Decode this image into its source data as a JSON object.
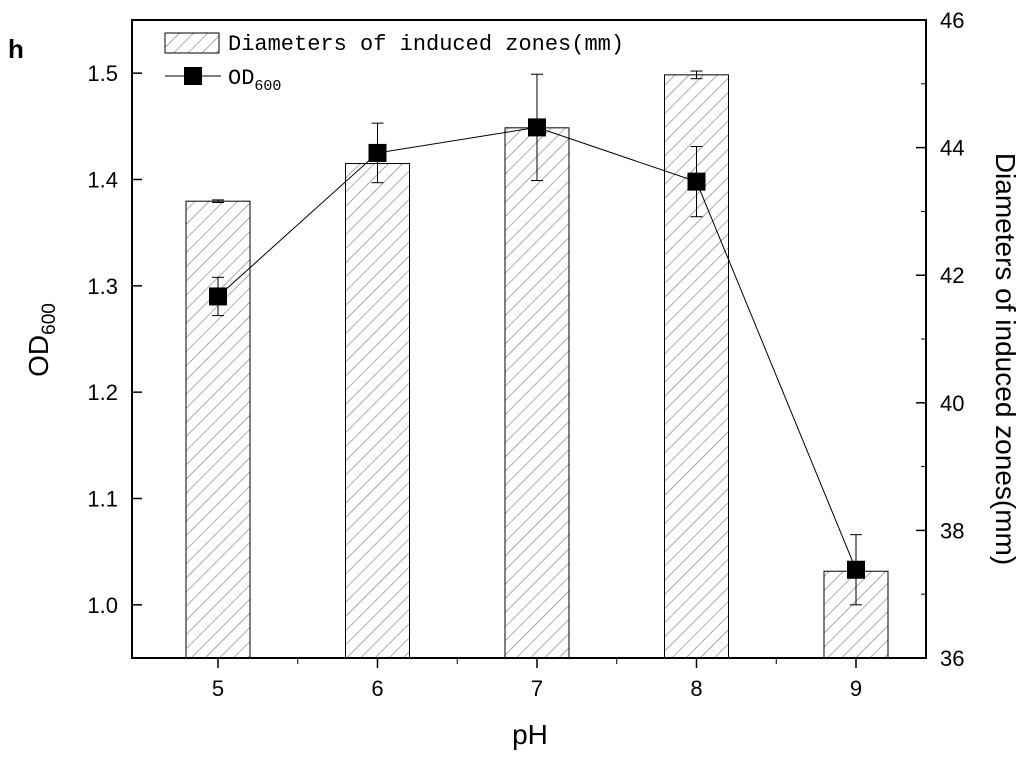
{
  "panel_label": "h",
  "chart_data": {
    "type": "bar+line",
    "categories": [
      "5",
      "6",
      "7",
      "8",
      "9"
    ],
    "xlabel": "pH",
    "ylabel_left": {
      "base": "OD",
      "sub": "600"
    },
    "ylabel_right": "Diameters of induced zones(mm)",
    "ylim_left": [
      0.95,
      1.55
    ],
    "ylim_right": [
      36,
      46
    ],
    "yticks_left": [
      "1.0",
      "1.1",
      "1.2",
      "1.3",
      "1.4",
      "1.5"
    ],
    "yticks_right": [
      "36",
      "38",
      "40",
      "42",
      "44",
      "46"
    ],
    "bars": {
      "name": "Diameters of induced zones(mm)",
      "axis": "right",
      "values": [
        43.16,
        43.75,
        44.31,
        45.14,
        37.36
      ],
      "errors": [
        0.02,
        0.0,
        0.0,
        0.06,
        0.0
      ],
      "pattern": "diagonal-hatch"
    },
    "line": {
      "name": {
        "base": "OD",
        "sub": "600"
      },
      "axis": "left",
      "values": [
        1.29,
        1.425,
        1.449,
        1.398,
        1.033
      ],
      "errors": [
        0.018,
        0.028,
        0.05,
        0.033,
        0.033
      ],
      "marker": "square",
      "color": "#000000"
    },
    "legend_position": "top-left"
  }
}
